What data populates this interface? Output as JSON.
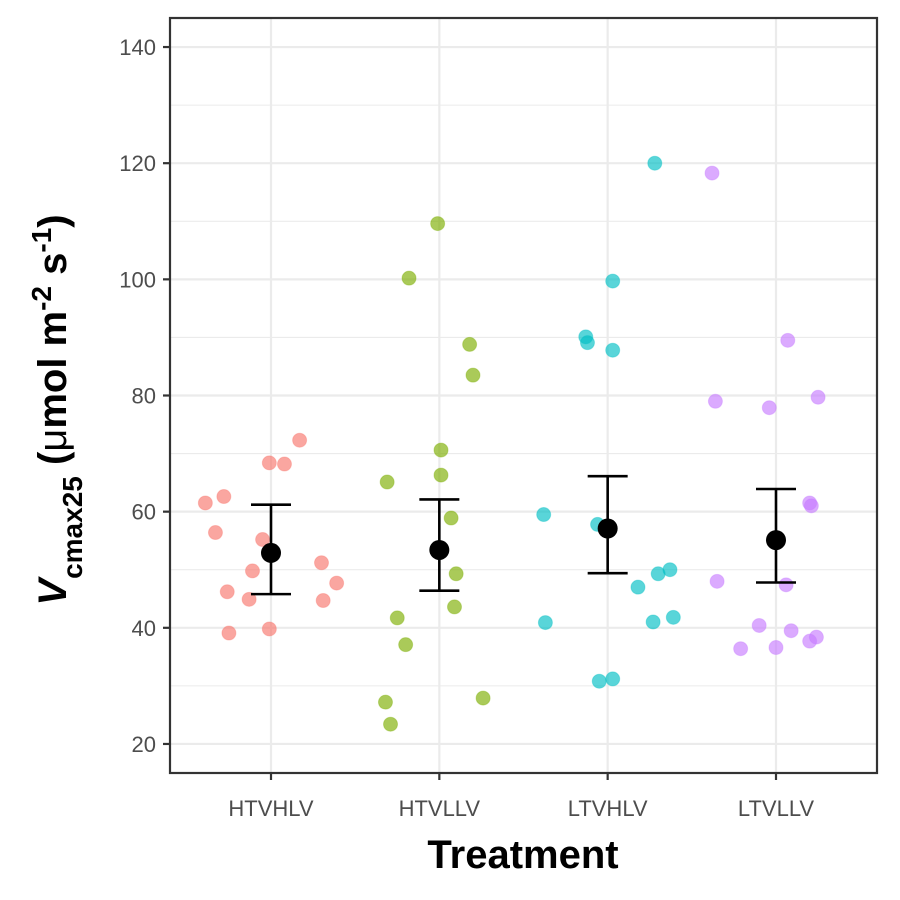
{
  "chart_data": {
    "type": "scatter",
    "xlabel": "Treatment",
    "ylabel": {
      "main": "V",
      "sub": "cmax25",
      "units_open": " (",
      "mu": "μ",
      "mol": "mol m",
      "exp1": "-2",
      "s": " s",
      "exp2": "-1",
      "units_close": ")"
    },
    "ylim": [
      15,
      145
    ],
    "yticks": [
      20,
      40,
      60,
      80,
      100,
      120,
      140
    ],
    "ytick_labels": [
      "20",
      "40",
      "60",
      "80",
      "100",
      "120",
      "140"
    ],
    "categories": [
      "HTVHLV",
      "HTVLLV",
      "LTVHLV",
      "LTVLLV"
    ],
    "grid": true,
    "legend": "none",
    "series": [
      {
        "category": "HTVHLV",
        "color": "#F8766D",
        "points": [
          {
            "jitter": -0.39,
            "y": 61.5
          },
          {
            "jitter": -0.28,
            "y": 62.6
          },
          {
            "jitter": -0.33,
            "y": 56.4
          },
          {
            "jitter": -0.26,
            "y": 46.2
          },
          {
            "jitter": -0.25,
            "y": 39.1
          },
          {
            "jitter": -0.11,
            "y": 49.8
          },
          {
            "jitter": -0.13,
            "y": 44.9
          },
          {
            "jitter": -0.05,
            "y": 55.2
          },
          {
            "jitter": -0.01,
            "y": 39.8
          },
          {
            "jitter": -0.01,
            "y": 68.4
          },
          {
            "jitter": 0.08,
            "y": 68.2
          },
          {
            "jitter": 0.17,
            "y": 72.3
          },
          {
            "jitter": 0.3,
            "y": 51.2
          },
          {
            "jitter": 0.31,
            "y": 44.7
          },
          {
            "jitter": 0.39,
            "y": 47.7
          }
        ],
        "mean": 52.9,
        "lower": 45.8,
        "upper": 61.2
      },
      {
        "category": "HTVLLV",
        "color": "#7CAE00",
        "points": [
          {
            "jitter": -0.31,
            "y": 65.1
          },
          {
            "jitter": -0.32,
            "y": 27.2
          },
          {
            "jitter": -0.29,
            "y": 23.4
          },
          {
            "jitter": -0.25,
            "y": 41.7
          },
          {
            "jitter": -0.2,
            "y": 37.1
          },
          {
            "jitter": -0.18,
            "y": 100.2
          },
          {
            "jitter": -0.01,
            "y": 109.6
          },
          {
            "jitter": 0.01,
            "y": 70.6
          },
          {
            "jitter": 0.01,
            "y": 66.3
          },
          {
            "jitter": 0.07,
            "y": 58.9
          },
          {
            "jitter": 0.1,
            "y": 49.3
          },
          {
            "jitter": 0.09,
            "y": 43.6
          },
          {
            "jitter": 0.18,
            "y": 88.8
          },
          {
            "jitter": 0.2,
            "y": 83.5
          },
          {
            "jitter": 0.26,
            "y": 27.9
          }
        ],
        "mean": 53.4,
        "lower": 46.4,
        "upper": 62.1
      },
      {
        "category": "LTVHLV",
        "color": "#00BFC4",
        "points": [
          {
            "jitter": -0.38,
            "y": 59.5
          },
          {
            "jitter": -0.37,
            "y": 40.9
          },
          {
            "jitter": -0.13,
            "y": 90.1
          },
          {
            "jitter": -0.12,
            "y": 89.1
          },
          {
            "jitter": -0.06,
            "y": 57.8
          },
          {
            "jitter": -0.05,
            "y": 30.8
          },
          {
            "jitter": 0.03,
            "y": 31.2
          },
          {
            "jitter": 0.03,
            "y": 99.7
          },
          {
            "jitter": 0.03,
            "y": 87.8
          },
          {
            "jitter": 0.18,
            "y": 47.0
          },
          {
            "jitter": 0.27,
            "y": 41.0
          },
          {
            "jitter": 0.28,
            "y": 120.0
          },
          {
            "jitter": 0.3,
            "y": 49.3
          },
          {
            "jitter": 0.37,
            "y": 50.0
          },
          {
            "jitter": 0.39,
            "y": 41.8
          }
        ],
        "mean": 57.1,
        "lower": 49.4,
        "upper": 66.1
      },
      {
        "category": "LTVLLV",
        "color": "#C77CFF",
        "points": [
          {
            "jitter": -0.38,
            "y": 118.3
          },
          {
            "jitter": -0.36,
            "y": 79.0
          },
          {
            "jitter": -0.35,
            "y": 48.0
          },
          {
            "jitter": -0.21,
            "y": 36.4
          },
          {
            "jitter": -0.1,
            "y": 40.4
          },
          {
            "jitter": -0.04,
            "y": 77.9
          },
          {
            "jitter": 0.0,
            "y": 36.6
          },
          {
            "jitter": 0.07,
            "y": 89.5
          },
          {
            "jitter": 0.06,
            "y": 47.4
          },
          {
            "jitter": 0.09,
            "y": 39.5
          },
          {
            "jitter": 0.2,
            "y": 61.5
          },
          {
            "jitter": 0.2,
            "y": 37.7
          },
          {
            "jitter": 0.21,
            "y": 61.0
          },
          {
            "jitter": 0.25,
            "y": 79.7
          },
          {
            "jitter": 0.24,
            "y": 38.4
          }
        ],
        "mean": 55.1,
        "lower": 47.8,
        "upper": 63.9
      }
    ]
  }
}
